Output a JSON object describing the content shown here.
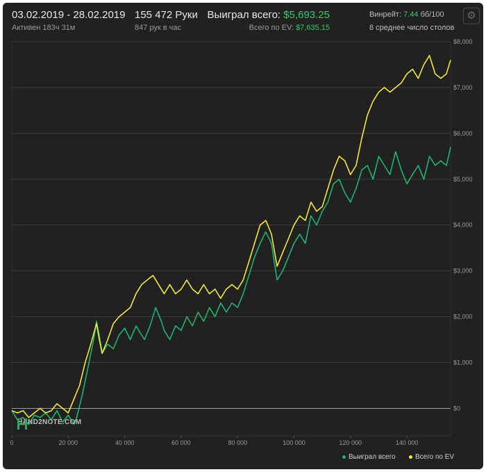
{
  "header": {
    "date_range": "03.02.2019 - 28.02.2019",
    "active": "Активен 183ч 31м",
    "hands": "155 472 Руки",
    "hands_per_hour": "847 рук в час",
    "won_label": "Выиграл всего:",
    "won_value": "$5,693.25",
    "ev_label": "Всего по EV:",
    "ev_value": "$7,635.15",
    "winrate_label": "Винрейт:",
    "winrate_value": "7.44",
    "winrate_unit": "бб/100",
    "tables": "8 среднее число столов",
    "settings_icon": "gear-icon"
  },
  "logo": {
    "text": "HAND2NOTE.COM"
  },
  "colors": {
    "won": "#1fb56e",
    "ev": "#f2ea3a",
    "background": "#212121",
    "accent_text": "#2ecc71"
  },
  "chart_data": {
    "type": "line",
    "x_tick_labels": [
      "0",
      "20 000",
      "40 000",
      "60 000",
      "80 000",
      "100 000",
      "120 000",
      "140 000"
    ],
    "y_tick_labels": [
      "$8,000",
      "$7,000",
      "$6,000",
      "$5,000",
      "$4,000",
      "$3,000",
      "$2,000",
      "$1,000",
      "$0"
    ],
    "xlim": [
      0,
      155472
    ],
    "ylim": [
      -600,
      8000
    ],
    "grid": true,
    "legend_position": "bottom-right",
    "series": [
      {
        "name": "Выиграл всего",
        "color": "#1fb56e",
        "points": [
          [
            0,
            -50
          ],
          [
            2000,
            -250
          ],
          [
            4000,
            -200
          ],
          [
            6000,
            -350
          ],
          [
            8000,
            -150
          ],
          [
            10000,
            -200
          ],
          [
            12000,
            -100
          ],
          [
            14000,
            -250
          ],
          [
            16000,
            -50
          ],
          [
            18000,
            -300
          ],
          [
            20000,
            -150
          ],
          [
            22000,
            -350
          ],
          [
            23000,
            -200
          ],
          [
            25000,
            300
          ],
          [
            27000,
            900
          ],
          [
            29000,
            1500
          ],
          [
            30000,
            1900
          ],
          [
            31000,
            1600
          ],
          [
            32000,
            1200
          ],
          [
            34000,
            1400
          ],
          [
            36000,
            1300
          ],
          [
            38000,
            1600
          ],
          [
            40000,
            1750
          ],
          [
            42000,
            1500
          ],
          [
            44000,
            1800
          ],
          [
            46000,
            1600
          ],
          [
            47000,
            1500
          ],
          [
            49000,
            1800
          ],
          [
            51000,
            2200
          ],
          [
            53000,
            1900
          ],
          [
            54000,
            1700
          ],
          [
            56000,
            1500
          ],
          [
            58000,
            1800
          ],
          [
            60000,
            1700
          ],
          [
            62000,
            2000
          ],
          [
            64000,
            1800
          ],
          [
            66000,
            2100
          ],
          [
            68000,
            1900
          ],
          [
            70000,
            2200
          ],
          [
            72000,
            2000
          ],
          [
            74000,
            2300
          ],
          [
            76000,
            2100
          ],
          [
            78000,
            2300
          ],
          [
            80000,
            2200
          ],
          [
            82000,
            2500
          ],
          [
            84000,
            2900
          ],
          [
            86000,
            3300
          ],
          [
            88000,
            3600
          ],
          [
            90000,
            3850
          ],
          [
            92000,
            3600
          ],
          [
            94000,
            2800
          ],
          [
            96000,
            3000
          ],
          [
            98000,
            3300
          ],
          [
            100000,
            3600
          ],
          [
            102000,
            3800
          ],
          [
            104000,
            3600
          ],
          [
            106000,
            4200
          ],
          [
            108000,
            4000
          ],
          [
            110000,
            4300
          ],
          [
            112000,
            4500
          ],
          [
            114000,
            4900
          ],
          [
            116000,
            5000
          ],
          [
            118000,
            4700
          ],
          [
            120000,
            4500
          ],
          [
            122000,
            4800
          ],
          [
            124000,
            5200
          ],
          [
            126000,
            5300
          ],
          [
            128000,
            5000
          ],
          [
            130000,
            5500
          ],
          [
            132000,
            5300
          ],
          [
            134000,
            5100
          ],
          [
            136000,
            5600
          ],
          [
            138000,
            5200
          ],
          [
            140000,
            4900
          ],
          [
            142000,
            5100
          ],
          [
            144000,
            5300
          ],
          [
            146000,
            5000
          ],
          [
            148000,
            5500
          ],
          [
            150000,
            5300
          ],
          [
            152000,
            5400
          ],
          [
            154000,
            5300
          ],
          [
            155472,
            5700
          ]
        ]
      },
      {
        "name": "Всего по EV",
        "color": "#f2ea3a",
        "points": [
          [
            0,
            -50
          ],
          [
            2000,
            -100
          ],
          [
            4000,
            -50
          ],
          [
            6000,
            -200
          ],
          [
            8000,
            -100
          ],
          [
            10000,
            0
          ],
          [
            12000,
            -100
          ],
          [
            14000,
            -50
          ],
          [
            16000,
            100
          ],
          [
            18000,
            0
          ],
          [
            20000,
            -100
          ],
          [
            22000,
            200
          ],
          [
            24000,
            500
          ],
          [
            26000,
            1000
          ],
          [
            28000,
            1400
          ],
          [
            30000,
            1850
          ],
          [
            31000,
            1500
          ],
          [
            32000,
            1200
          ],
          [
            34000,
            1500
          ],
          [
            36000,
            1850
          ],
          [
            38000,
            2000
          ],
          [
            40000,
            2100
          ],
          [
            42000,
            2200
          ],
          [
            44000,
            2500
          ],
          [
            46000,
            2700
          ],
          [
            48000,
            2800
          ],
          [
            50000,
            2900
          ],
          [
            52000,
            2700
          ],
          [
            54000,
            2500
          ],
          [
            56000,
            2700
          ],
          [
            58000,
            2500
          ],
          [
            60000,
            2600
          ],
          [
            62000,
            2800
          ],
          [
            64000,
            2600
          ],
          [
            66000,
            2500
          ],
          [
            68000,
            2700
          ],
          [
            70000,
            2500
          ],
          [
            72000,
            2600
          ],
          [
            74000,
            2400
          ],
          [
            76000,
            2600
          ],
          [
            78000,
            2700
          ],
          [
            80000,
            2600
          ],
          [
            82000,
            2800
          ],
          [
            84000,
            3200
          ],
          [
            86000,
            3600
          ],
          [
            88000,
            4000
          ],
          [
            90000,
            4100
          ],
          [
            92000,
            3800
          ],
          [
            94000,
            3100
          ],
          [
            96000,
            3400
          ],
          [
            98000,
            3700
          ],
          [
            100000,
            4000
          ],
          [
            102000,
            4200
          ],
          [
            104000,
            4100
          ],
          [
            106000,
            4500
          ],
          [
            108000,
            4300
          ],
          [
            110000,
            4400
          ],
          [
            112000,
            4800
          ],
          [
            114000,
            5200
          ],
          [
            116000,
            5500
          ],
          [
            118000,
            5400
          ],
          [
            120000,
            5100
          ],
          [
            122000,
            5300
          ],
          [
            124000,
            5900
          ],
          [
            126000,
            6400
          ],
          [
            128000,
            6700
          ],
          [
            130000,
            6900
          ],
          [
            132000,
            7000
          ],
          [
            134000,
            6900
          ],
          [
            136000,
            7000
          ],
          [
            138000,
            7100
          ],
          [
            140000,
            7300
          ],
          [
            142000,
            7400
          ],
          [
            144000,
            7200
          ],
          [
            146000,
            7500
          ],
          [
            148000,
            7700
          ],
          [
            150000,
            7300
          ],
          [
            152000,
            7200
          ],
          [
            154000,
            7300
          ],
          [
            155472,
            7600
          ]
        ]
      }
    ]
  }
}
